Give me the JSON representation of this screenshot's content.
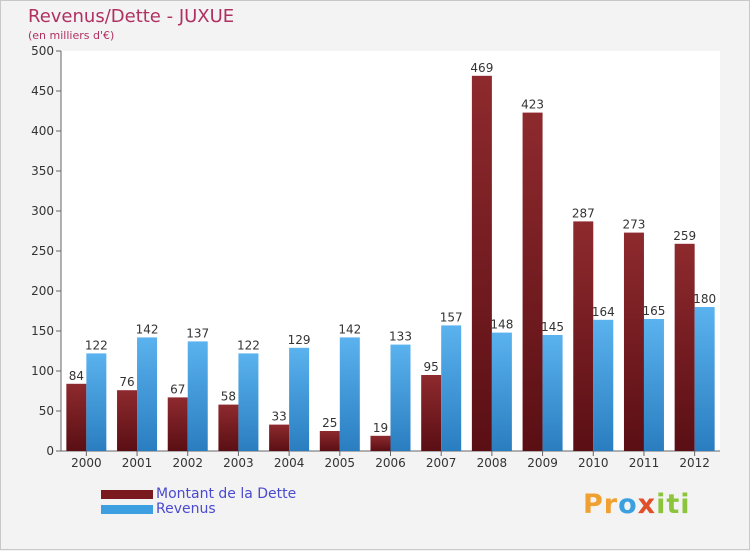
{
  "title": "Revenus/Dette - JUXUE",
  "subtitle": "(en milliers d'€)",
  "logo": {
    "p1": "Pr",
    "p2": "o",
    "p3": "x",
    "p4": "iti"
  },
  "colors": {
    "dette": "#7a1a1e",
    "revenus": "#3d9ee0"
  },
  "chart_data": {
    "type": "bar",
    "title": "Revenus/Dette - JUXUE",
    "ylabel": "(en milliers d'€)",
    "ylim": [
      0,
      500
    ],
    "yticks": [
      0,
      50,
      100,
      150,
      200,
      250,
      300,
      350,
      400,
      450,
      500
    ],
    "categories": [
      "2000",
      "2001",
      "2002",
      "2003",
      "2004",
      "2005",
      "2006",
      "2007",
      "2008",
      "2009",
      "2010",
      "2011",
      "2012"
    ],
    "series": [
      {
        "name": "Montant de la Dette",
        "values": [
          84,
          76,
          67,
          58,
          33,
          25,
          19,
          95,
          469,
          423,
          287,
          273,
          259
        ]
      },
      {
        "name": "Revenus",
        "values": [
          122,
          142,
          137,
          122,
          129,
          142,
          133,
          157,
          148,
          145,
          164,
          165,
          180
        ]
      }
    ],
    "legend": "bottom-left",
    "grid": false
  }
}
